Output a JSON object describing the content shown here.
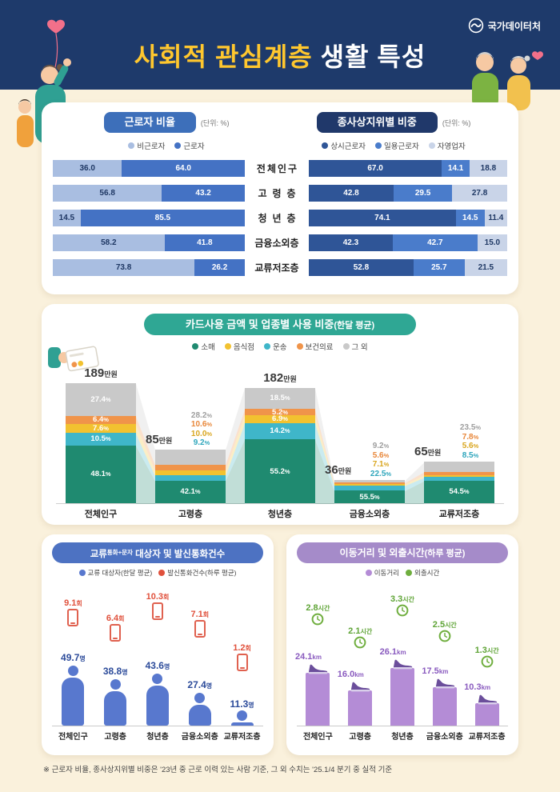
{
  "header": {
    "logo": "국가데이터처",
    "title_accent": "사회적 관심계층",
    "title_rest": " 생활 특성"
  },
  "categories": [
    "전체인구",
    "고령층",
    "청년층",
    "금융소외층",
    "교류저조층"
  ],
  "colors": {
    "background": "#FAF1DC",
    "header_bg": "#1E3A6B",
    "title_accent": "#FFC72E",
    "pill_worker": "#3D6FBA",
    "pill_status": "#20386A",
    "pill_usage": "#2FA794",
    "pill_contacts": "#4D72C2",
    "pill_mobility": "#A58BC9"
  },
  "chart_data": [
    {
      "id": "worker-ratio",
      "type": "bar",
      "orientation": "horizontal",
      "stacked": true,
      "title": "근로자 비율",
      "unit": "(단위: %)",
      "categories": [
        "전체인구",
        "고령층",
        "청년층",
        "금융소외층",
        "교류저조층"
      ],
      "series": [
        {
          "name": "비근로자",
          "color": "#A9BEE1",
          "text_color": "#1F3864",
          "values": [
            36.0,
            56.8,
            14.5,
            58.2,
            73.8
          ]
        },
        {
          "name": "근로자",
          "color": "#4472C4",
          "text_color": "#FFFFFF",
          "values": [
            64.0,
            43.2,
            85.5,
            41.8,
            26.2
          ]
        }
      ]
    },
    {
      "id": "employment-status",
      "type": "bar",
      "orientation": "horizontal",
      "stacked": true,
      "title": "종사상지위별 비중",
      "unit": "(단위: %)",
      "categories": [
        "전체인구",
        "고령층",
        "청년층",
        "금융소외층",
        "교류저조층"
      ],
      "series": [
        {
          "name": "상시근로자",
          "color": "#2F5597",
          "text_color": "#FFFFFF",
          "values": [
            67.0,
            42.8,
            74.1,
            42.3,
            52.8
          ]
        },
        {
          "name": "일용근로자",
          "color": "#4A7CCB",
          "text_color": "#FFFFFF",
          "values": [
            14.1,
            29.5,
            14.5,
            42.7,
            25.7
          ]
        },
        {
          "name": "자영업자",
          "color": "#C9D4E8",
          "text_color": "#1F3864",
          "values": [
            18.8,
            27.8,
            11.4,
            15.0,
            21.5
          ]
        }
      ]
    },
    {
      "id": "card-usage",
      "type": "area",
      "stacked": true,
      "title": "카드사용 금액 및 업종별 사용 비중",
      "title_suffix": "(한달 평균)",
      "categories": [
        "전체인구",
        "고령층",
        "청년층",
        "금융소외층",
        "교류저조층"
      ],
      "totals": [
        189,
        85,
        182,
        36,
        65
      ],
      "totals_unit": "만원",
      "legend": [
        {
          "label": "소매",
          "color": "#1F8A70"
        },
        {
          "label": "음식점",
          "color": "#F2C230"
        },
        {
          "label": "운송",
          "color": "#3FB6C9"
        },
        {
          "label": "보건의료",
          "color": "#F0944A"
        },
        {
          "label": "그 외",
          "color": "#C9C9C9"
        }
      ],
      "series": [
        {
          "name": "소매",
          "color": "#1F8A70",
          "label_color": "#1F8A70",
          "values": [
            48.1,
            42.1,
            55.2,
            55.5,
            54.5
          ]
        },
        {
          "name": "운송",
          "color": "#3FB6C9",
          "label_color": "#2FA6BC",
          "values": [
            10.5,
            9.2,
            14.2,
            22.5,
            8.5
          ]
        },
        {
          "name": "음식점",
          "color": "#F2C230",
          "label_color": "#D9A61F",
          "values": [
            7.6,
            10.0,
            6.9,
            7.1,
            5.6
          ]
        },
        {
          "name": "보건의료",
          "color": "#F0944A",
          "label_color": "#E8873A",
          "values": [
            6.4,
            10.6,
            5.2,
            5.6,
            7.8
          ]
        },
        {
          "name": "그 외",
          "color": "#C9C9C9",
          "label_color": "#9E9E9E",
          "values": [
            27.4,
            28.2,
            18.5,
            9.2,
            23.5
          ]
        }
      ]
    },
    {
      "id": "contacts-calls",
      "type": "bar",
      "title_a": "교류",
      "title_b": "통화+문자",
      "title_c": " 대상자 및 발신통화건수",
      "legend": [
        {
          "label": "교류 대상자(한달 평균)",
          "color": "#5878CE"
        },
        {
          "label": "발신통화건수(하루 평균)",
          "color": "#E0513C"
        }
      ],
      "categories": [
        "전체인구",
        "고령층",
        "청년층",
        "금융소외층",
        "교류저조층"
      ],
      "series": [
        {
          "name": "교류 대상자",
          "unit": "명",
          "color": "#5878CE",
          "values": [
            49.7,
            38.8,
            43.6,
            27.4,
            11.3
          ]
        },
        {
          "name": "발신통화건수",
          "unit": "회",
          "color": "#E0513C",
          "values": [
            9.1,
            6.4,
            10.3,
            7.1,
            1.2
          ]
        }
      ]
    },
    {
      "id": "mobility",
      "type": "bar",
      "title": "이동거리 및 외출시간",
      "title_suffix": "(하루 평균)",
      "legend": [
        {
          "label": "이동거리",
          "color": "#B48CD6"
        },
        {
          "label": "외출시간",
          "color": "#6FAE3E"
        }
      ],
      "categories": [
        "전체인구",
        "고령층",
        "청년층",
        "금융소외층",
        "교류저조층"
      ],
      "series": [
        {
          "name": "이동거리",
          "unit": "km",
          "color": "#B48CD6",
          "values": [
            24.1,
            16.0,
            26.1,
            17.5,
            10.3
          ]
        },
        {
          "name": "외출시간",
          "unit": "시간",
          "color": "#6FAE3E",
          "values": [
            2.8,
            2.1,
            3.3,
            2.5,
            1.3
          ]
        }
      ]
    }
  ],
  "footnote": "※ 근로자 비율, 종사상지위별 비중은 '23년 중 근로 이력 있는 사람 기준, 그 외 수치는 '25.1/4 분기 중 실적 기준"
}
